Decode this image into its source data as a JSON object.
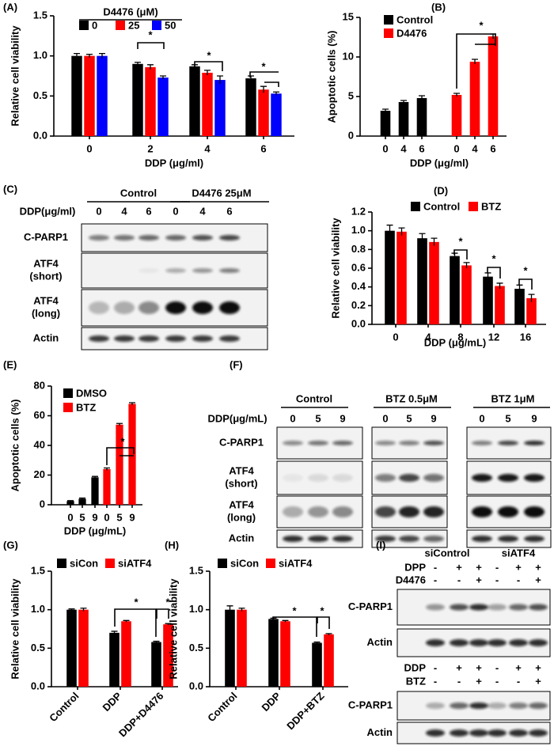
{
  "chart_data": [
    {
      "type": "bar",
      "panel": "(A)",
      "y_label": "Relative cell viability",
      "x_label": "DDP (μg/ml)",
      "legend_title": "D4476 (μM)",
      "categories": [
        "0",
        "2",
        "4",
        "6"
      ],
      "series": [
        {
          "name": "0",
          "color": "#000000",
          "values": [
            1.0,
            0.9,
            0.87,
            0.72
          ],
          "errors": [
            0.03,
            0.02,
            0.02,
            0.03
          ]
        },
        {
          "name": "25",
          "color": "#ff0000",
          "values": [
            1.0,
            0.86,
            0.79,
            0.58
          ],
          "errors": [
            0.02,
            0.03,
            0.03,
            0.04
          ]
        },
        {
          "name": "50",
          "color": "#0000ff",
          "values": [
            1.0,
            0.73,
            0.7,
            0.53
          ],
          "errors": [
            0.03,
            0.02,
            0.05,
            0.02
          ]
        }
      ],
      "ylim": [
        0,
        1.5
      ],
      "yticks": [
        {
          "value": 0,
          "label": "0.0"
        },
        0.5,
        {
          "value": 1,
          "label": "1.0"
        },
        1.5
      ],
      "annotations": [
        "*",
        "*",
        "*"
      ]
    },
    {
      "type": "bar",
      "panel": "(B)",
      "y_label": "Apoptotic cells (%)",
      "x_label": "DDP (μg/ml)",
      "categories": [
        "0",
        "4",
        "6",
        "0",
        "4",
        "6"
      ],
      "series": [
        {
          "name": "Control",
          "color": "#000000",
          "values": [
            3.2,
            4.3,
            4.8,
            null,
            null,
            null
          ],
          "errors": [
            0.2,
            0.2,
            0.3,
            null,
            null,
            null
          ]
        },
        {
          "name": "D4476",
          "color": "#ff0000",
          "values": [
            null,
            null,
            null,
            5.2,
            9.4,
            12.6
          ],
          "errors": [
            null,
            null,
            null,
            0.2,
            0.3,
            0.3
          ]
        }
      ],
      "ylim": [
        0,
        15
      ],
      "yticks": [
        0,
        5,
        10,
        15
      ],
      "annotations": [
        "*"
      ]
    },
    {
      "type": "bar",
      "panel": "(D)",
      "y_label": "Relative cell viability",
      "x_label": "DDP (μg/mL)",
      "categories": [
        "0",
        "4",
        "8",
        "12",
        "16"
      ],
      "series": [
        {
          "name": "Control",
          "color": "#000000",
          "values": [
            1.0,
            0.92,
            0.73,
            0.51,
            0.38
          ],
          "errors": [
            0.06,
            0.05,
            0.03,
            0.04,
            0.04
          ]
        },
        {
          "name": "BTZ",
          "color": "#ff0000",
          "values": [
            0.99,
            0.88,
            0.63,
            0.41,
            0.28
          ],
          "errors": [
            0.04,
            0.04,
            0.03,
            0.03,
            0.04
          ]
        }
      ],
      "ylim": [
        0,
        1.2
      ],
      "yticks": [
        {
          "value": 0,
          "label": "0.0"
        },
        0.2,
        0.4,
        0.6,
        0.8,
        {
          "value": 1,
          "label": "1.0"
        },
        1.2
      ],
      "annotations": [
        "*",
        "*",
        "*"
      ]
    },
    {
      "type": "bar",
      "panel": "(E)",
      "y_label": "Apoptotic cells (%)",
      "x_label": "DDP (μg/mL)",
      "categories": [
        "0",
        "5",
        "9",
        "0",
        "5",
        "9"
      ],
      "series": [
        {
          "name": "DMSO",
          "color": "#000000",
          "values": [
            2.5,
            4,
            18.5,
            null,
            null,
            null
          ],
          "errors": [
            0.3,
            0.5,
            0.6,
            null,
            null,
            null
          ]
        },
        {
          "name": "BTZ",
          "color": "#ff0000",
          "values": [
            null,
            null,
            null,
            24,
            54,
            68
          ],
          "errors": [
            null,
            null,
            null,
            0.8,
            0.8,
            0.8
          ]
        }
      ],
      "ylim": [
        0,
        80
      ],
      "yticks": [
        0,
        20,
        40,
        60,
        80
      ],
      "annotations": [
        "*"
      ]
    },
    {
      "type": "bar",
      "panel": "(G)",
      "y_label": "Relative cell viability",
      "categories": [
        "Control",
        "DDP",
        "DDP+D4476"
      ],
      "series": [
        {
          "name": "siCon",
          "color": "#000000",
          "values": [
            1.0,
            0.7,
            0.58
          ],
          "errors": [
            0.01,
            0.02,
            0.01
          ]
        },
        {
          "name": "siATF4",
          "color": "#ff0000",
          "values": [
            1.0,
            0.85,
            0.81
          ],
          "errors": [
            0.02,
            0.01,
            0.01
          ]
        }
      ],
      "ylim": [
        0,
        1.5
      ],
      "yticks": [
        {
          "value": 0,
          "label": "0.0"
        },
        0.5,
        {
          "value": 1,
          "label": "1.0"
        },
        1.5
      ],
      "annotations": [
        "*",
        "*"
      ]
    },
    {
      "type": "bar",
      "panel": "(H)",
      "y_label": "Relative cell viability",
      "categories": [
        "Control",
        "DDP",
        "DDP+BTZ"
      ],
      "series": [
        {
          "name": "siCon",
          "color": "#000000",
          "values": [
            1.0,
            0.88,
            0.57
          ],
          "errors": [
            0.05,
            0.01,
            0.01
          ]
        },
        {
          "name": "siATF4",
          "color": "#ff0000",
          "values": [
            1.0,
            0.85,
            0.68
          ],
          "errors": [
            0.02,
            0.01,
            0.01
          ]
        }
      ],
      "ylim": [
        0,
        1.5
      ],
      "yticks": [
        {
          "value": 0,
          "label": "0.0"
        },
        0.5,
        {
          "value": 1,
          "label": "1.0"
        },
        1.5
      ],
      "annotations": [
        "*",
        "*"
      ]
    }
  ],
  "blots": [
    {
      "panel": "(C)",
      "groups": [
        "Control",
        "D4476 25μM"
      ],
      "header": "DDP(μg/ml)",
      "lanes": [
        "0",
        "4",
        "6",
        "0",
        "4",
        "6"
      ],
      "rows": [
        [
          "C-PARP1"
        ],
        [
          "ATF4",
          "(short)"
        ],
        [
          "ATF4",
          "(long)"
        ],
        [
          "Actin"
        ]
      ]
    },
    {
      "panel": "(F)",
      "groups": [
        "Control",
        "BTZ  0.5μM",
        "BTZ  1μM"
      ],
      "header": "DDP(μg/mL)",
      "lanes": [
        "0",
        "5",
        "9",
        "0",
        "5",
        "9",
        "0",
        "5",
        "9"
      ],
      "rows": [
        [
          "C-PARP1"
        ],
        [
          "ATF4",
          "(short)"
        ],
        [
          "ATF4",
          "(long)"
        ],
        [
          "Actin"
        ]
      ]
    },
    {
      "panel": "(I)",
      "groups": [
        "siControl",
        "siATF4"
      ],
      "conditions": [
        {
          "treatments": [
            {
              "label": "DPP",
              "signs": [
                "-",
                "+",
                "+",
                "-",
                "+",
                "+"
              ]
            },
            {
              "label": "D4476",
              "signs": [
                "-",
                "-",
                "+",
                "-",
                "-",
                "+"
              ]
            }
          ],
          "rows": [
            "C-PARP1",
            "Actin"
          ]
        },
        {
          "treatments": [
            {
              "label": "DDP",
              "signs": [
                "-",
                "+",
                "+",
                "-",
                "+",
                "+"
              ]
            },
            {
              "label": "BTZ",
              "signs": [
                "-",
                "-",
                "+",
                "-",
                "-",
                "+"
              ]
            }
          ],
          "rows": [
            "C-PARP1",
            "Actin"
          ]
        }
      ]
    }
  ]
}
